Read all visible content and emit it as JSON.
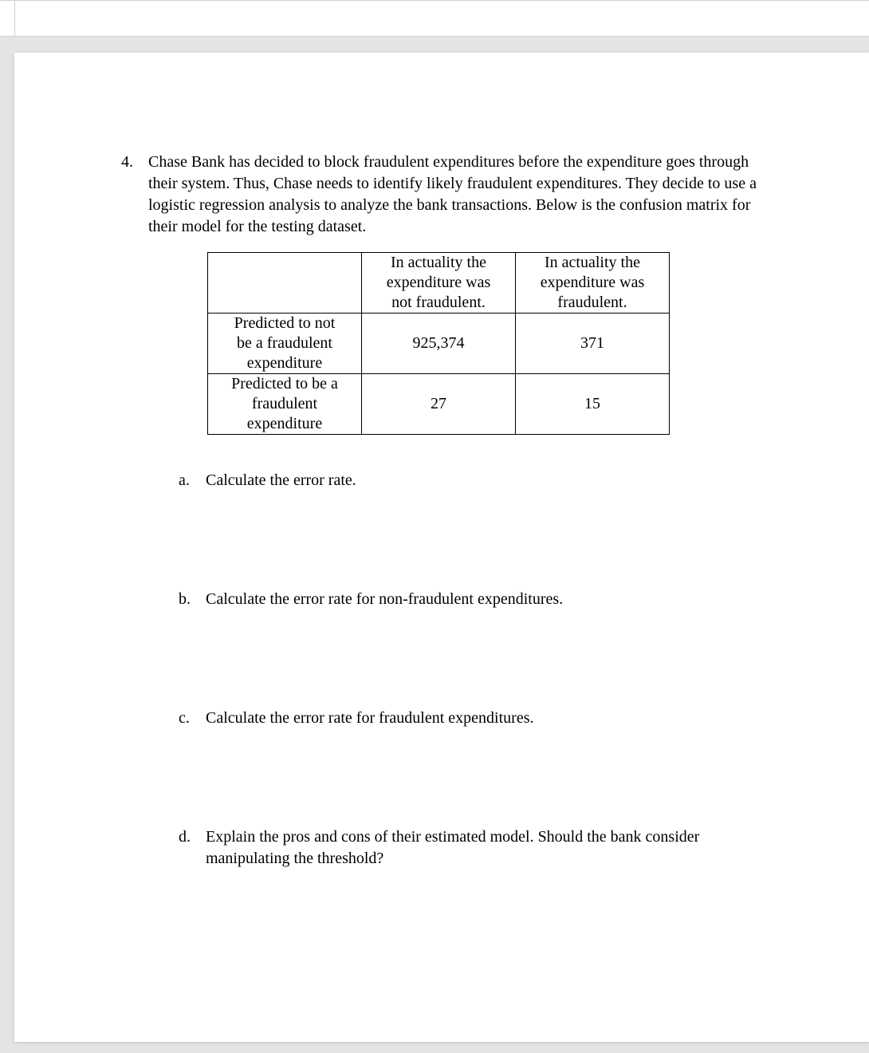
{
  "question": {
    "number": "4.",
    "prompt": "Chase Bank has decided to block fraudulent expenditures before the expenditure goes through their system. Thus, Chase needs to identify likely fraudulent expenditures. They decide to use a logistic regression analysis to analyze the bank transactions. Below is the confusion matrix for their model for the testing dataset."
  },
  "table": {
    "type": "table",
    "border_color": "#000000",
    "background_color": "#ffffff",
    "text_color": "#000000",
    "font_family": "Times New Roman",
    "font_size_pt": 15,
    "col_headers": [
      "In actuality the\nexpenditure was\nnot fraudulent.",
      "In actuality the\nexpenditure was\nfraudulent."
    ],
    "row_headers": [
      "Predicted to not\nbe a fraudulent\nexpenditure",
      "Predicted to be a\nfraudulent\nexpenditure"
    ],
    "cells": [
      [
        "925,374",
        "371"
      ],
      [
        "27",
        "15"
      ]
    ]
  },
  "subparts": [
    {
      "letter": "a.",
      "text": "Calculate the error rate."
    },
    {
      "letter": "b.",
      "text": "Calculate the error rate for non-fraudulent expenditures."
    },
    {
      "letter": "c.",
      "text": "Calculate the error rate for fraudulent expenditures."
    },
    {
      "letter": "d.",
      "text": "Explain the pros and cons of their estimated model. Should the bank consider manipulating the threshold?"
    }
  ],
  "colors": {
    "page_bg": "#ffffff",
    "canvas_bg": "#e4e4e4",
    "text": "#000000",
    "rule": "#d0d0d0"
  }
}
